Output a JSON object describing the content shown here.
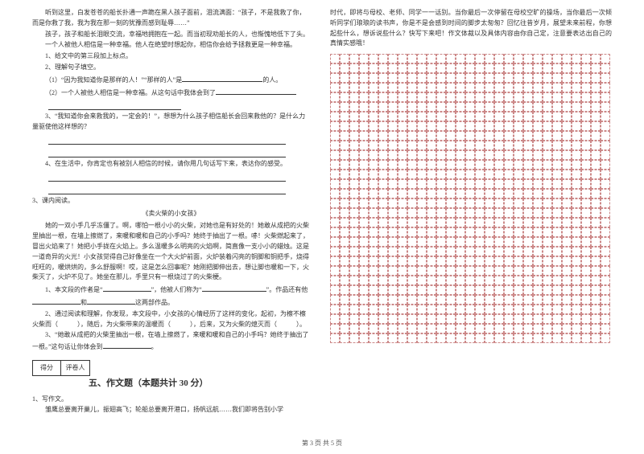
{
  "left": {
    "story1": {
      "p1": "听到这里，白发苍苍的船长扑通一声跪在黑人孩子面前，泪流满面：“孩子，不是我救了你，而是你救了我，我为我在那一刻的犹豫而感到耻辱……”",
      "p2": "孩子，孩子和船长泪眼交流，幸福地拥抱在一起。而当初现劝船长的人，也惭愧地低下了头。",
      "p3": "一个人被他人相信是一种幸福。他人在绝望时想起你，相信你会给予拯救更是一种幸福。",
      "q1": "1、给文中的第三段加上标点。",
      "q2": "2、理解句子填空。",
      "q2_1_a": "（1）“因为我知道你是那样的人！”“那样的人”是",
      "q2_1_b": "的人。",
      "q2_2": "（2）一个人被他人相信是一种幸福。从这句话中我体会到了",
      "q3_a": "3、“我知道你会来救我的，一定会的！”，想想为什么孩子相信船长会回来救他的？是什么力量驱使他这样想的？",
      "q4": "4、在生活中，你肯定也有被别人相信的时候，请你用几句话写下来，表达你的感受。"
    },
    "reading2": {
      "header": "3、课内阅读。",
      "title": "《卖火柴的小女孩》",
      "body": "她的一双小手几乎冻僵了。啊，哪怕一根小小的火柴，对她也是有好处的！她敢从成把的火柴里抽出一根，在墙上擦燃了，来暖和暖和自己的小手吗？她终于抽出了一根。哧！火柴燃起来了，冒出火焰来了！她把小手拢在火焰上。多么温暖多么明亮的火焰啊，简直像一支小小的蜡烛。这是一道奇异的火光！小女孩觉得自己好像坐在一个大火炉前面，火炉装着闪亮的铜脚和铜把手，烧得旺旺的，暖烘烘的，多么舒服啊！哎，这是怎么回事呢？她刚把脚伸出去，想让脚也暖和一下，火柴灭了，火炉不见了。她坐在那儿，手里只有一根烧过了的火柴梗。",
      "q1_a": "1、本文段的作者是“",
      "q1_b": "”，他被人们称为“",
      "q1_c": "”。作品还有他",
      "q1_d": "和",
      "q1_e": "这两部作品。",
      "q2": "2、通过阅读和理解，你发现，本文段中，小女孩的心情经历了这样的变化，起初，为檫不檫火柴而（　　　），随后，为火柴带来的温暖而（　　　），后来，又为火柴的熄灭而（　　　）。",
      "q3_a": "3、“她敢从成把的火柴里抽出一根，在墙上擦燃了，来暖和暖和自己的小手吗？她终于抽出了一根。”这句话让你体会到",
      "q3_b": "。"
    },
    "score": {
      "label1": "得分",
      "label2": "评卷人"
    },
    "section5": {
      "title": "五、作文题（本题共计 30 分）",
      "q1": "1、写作文。",
      "p1": "雏鹰总要离开巢儿，振翅高飞；轮船总要离开港口，扬帆远航……我们即将告别小学"
    }
  },
  "right": {
    "p1": "时代，即将与母校、老师、同学一一话别。当你最后一次停留在母校空旷的操场，当你最后一次倾听同学们琅琅的读书声，你是不是会感到时间的脚步太匆匆？回忆往昔岁月，展望未来前程，你想起些什么，想诉说些什么？快写下来吧！作文体裁以及具体内容由你自己定，注意要表达出自己的真情实感哦！",
    "grid": {
      "rows": 30,
      "cols": 29
    }
  },
  "footer": "第 3 页 共 5 页"
}
